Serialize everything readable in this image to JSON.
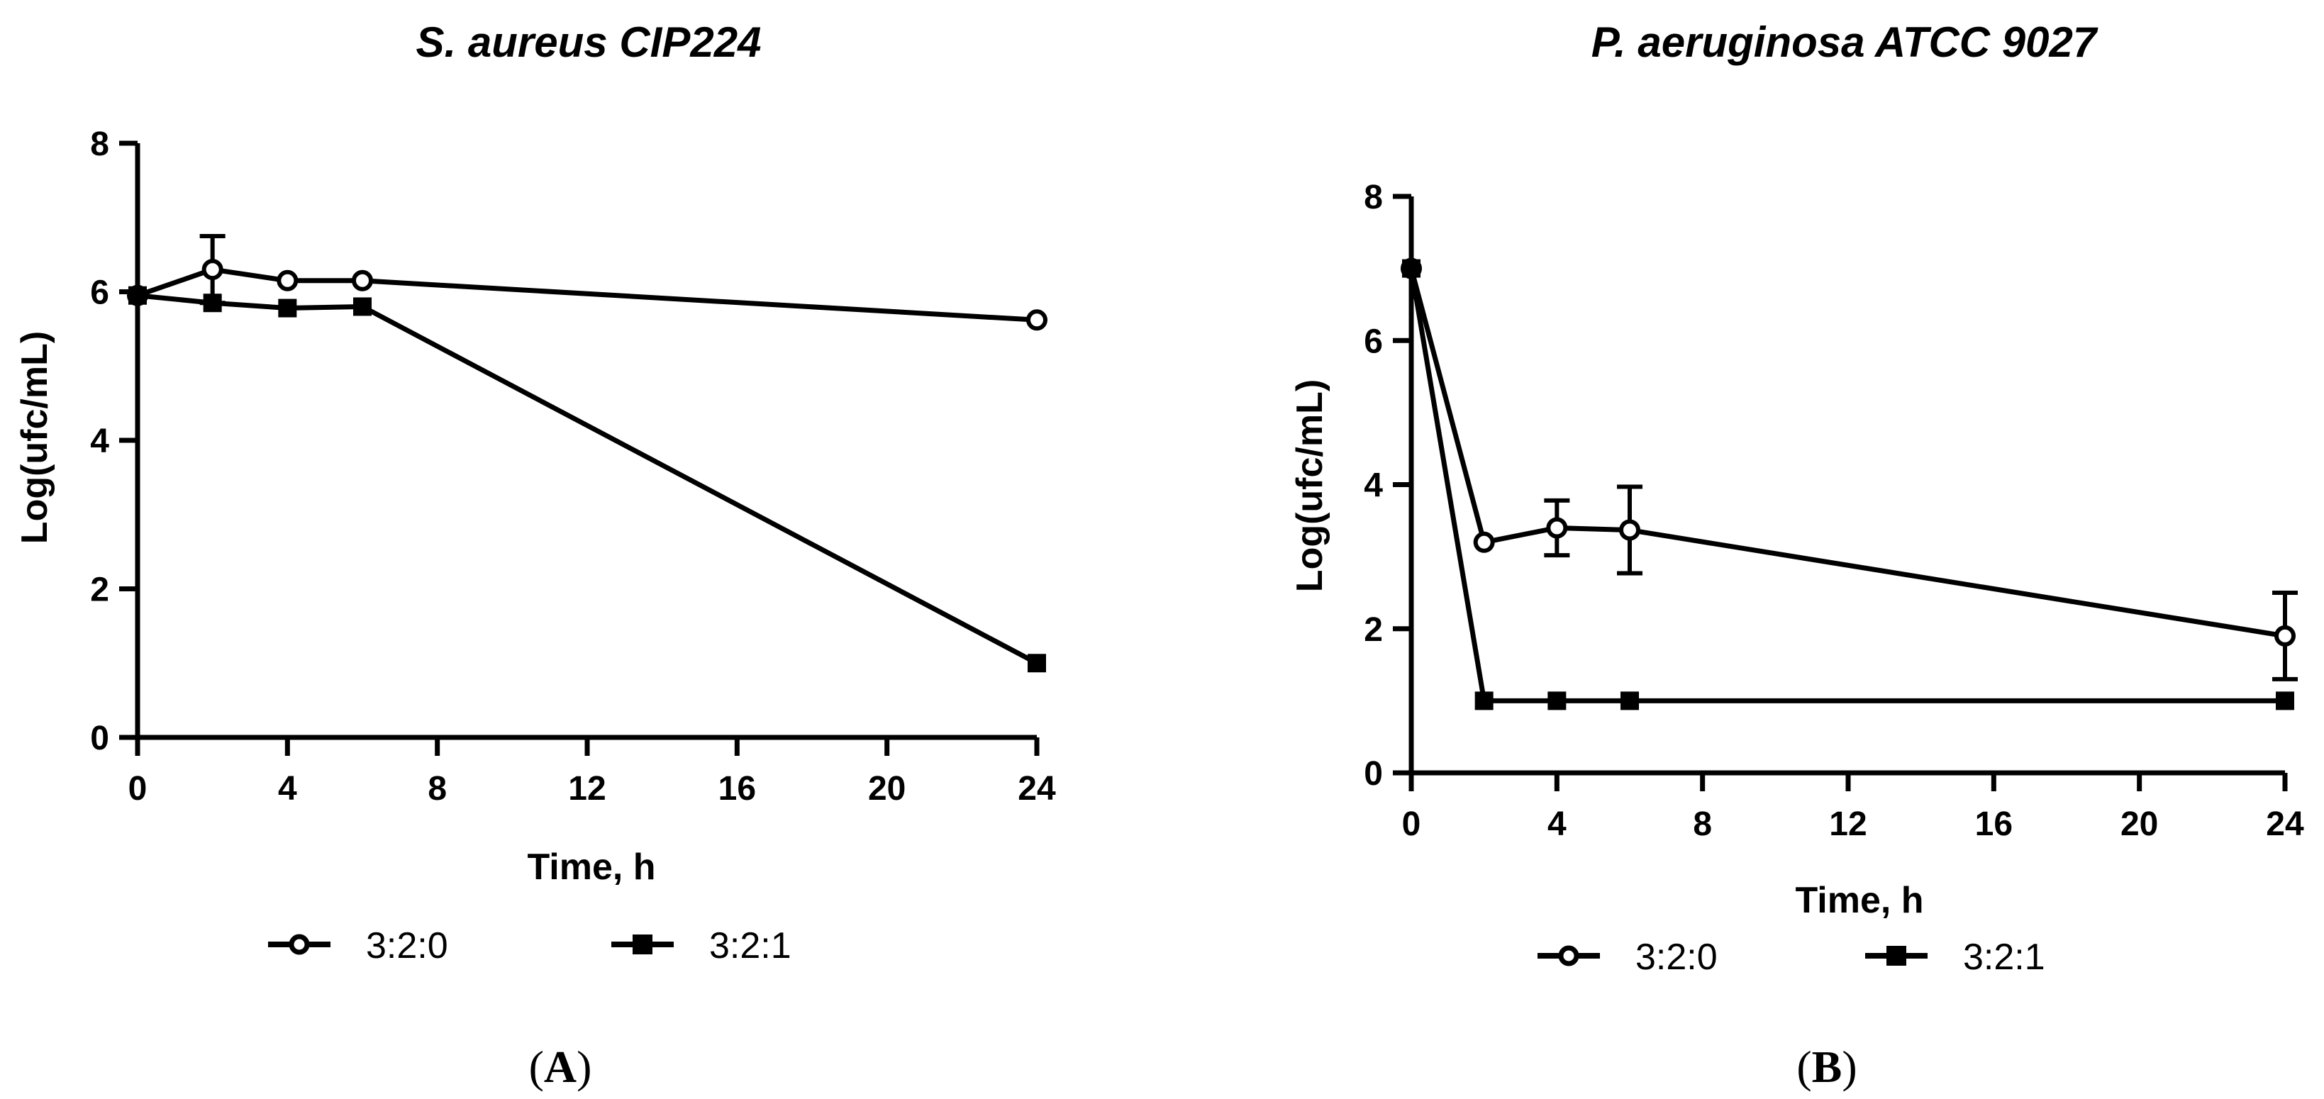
{
  "chart_data": [
    {
      "type": "line",
      "panel_label": {
        "open": "(",
        "letter": "A",
        "close": ")"
      },
      "title": "S. aureus CIP224",
      "xlabel": "Time, h",
      "ylabel": "Log(ufc/mL)",
      "xlim": [
        0,
        24
      ],
      "ylim": [
        0,
        8
      ],
      "xticks": [
        "0",
        "4",
        "8",
        "12",
        "16",
        "20",
        "24"
      ],
      "yticks": [
        "0",
        "2",
        "4",
        "6",
        "8"
      ],
      "legend_position": "bottom",
      "series": [
        {
          "name": "3:2:0",
          "marker": "open-circle",
          "x": [
            0,
            2,
            4,
            6,
            24
          ],
          "y": [
            5.95,
            6.3,
            6.15,
            6.15,
            5.62
          ],
          "error": [
            0,
            0.45,
            0,
            0,
            0
          ]
        },
        {
          "name": "3:2:1",
          "marker": "filled-square",
          "x": [
            0,
            2,
            4,
            6,
            24
          ],
          "y": [
            5.95,
            5.85,
            5.78,
            5.8,
            1.0
          ],
          "error": [
            0,
            0,
            0,
            0,
            0
          ]
        }
      ]
    },
    {
      "type": "line",
      "panel_label": {
        "open": "(",
        "letter": "B",
        "close": ")"
      },
      "title": "P. aeruginosa ATCC 9027",
      "xlabel": "Time, h",
      "ylabel": "Log(ufc/mL)",
      "xlim": [
        0,
        24
      ],
      "ylim": [
        0,
        8
      ],
      "xticks": [
        "0",
        "4",
        "8",
        "12",
        "16",
        "20",
        "24"
      ],
      "yticks": [
        "0",
        "2",
        "4",
        "6",
        "8"
      ],
      "legend_position": "bottom",
      "series": [
        {
          "name": "3:2:0",
          "marker": "open-circle",
          "x": [
            0,
            2,
            4,
            6,
            24
          ],
          "y": [
            7.0,
            3.2,
            3.4,
            3.37,
            1.9
          ],
          "error": [
            0,
            0,
            0.38,
            0.6,
            0.6
          ]
        },
        {
          "name": "3:2:1",
          "marker": "filled-square",
          "x": [
            0,
            2,
            4,
            6,
            24
          ],
          "y": [
            7.0,
            1.0,
            1.0,
            1.0,
            1.0
          ],
          "error": [
            0,
            0,
            0,
            0,
            0
          ]
        }
      ]
    }
  ]
}
